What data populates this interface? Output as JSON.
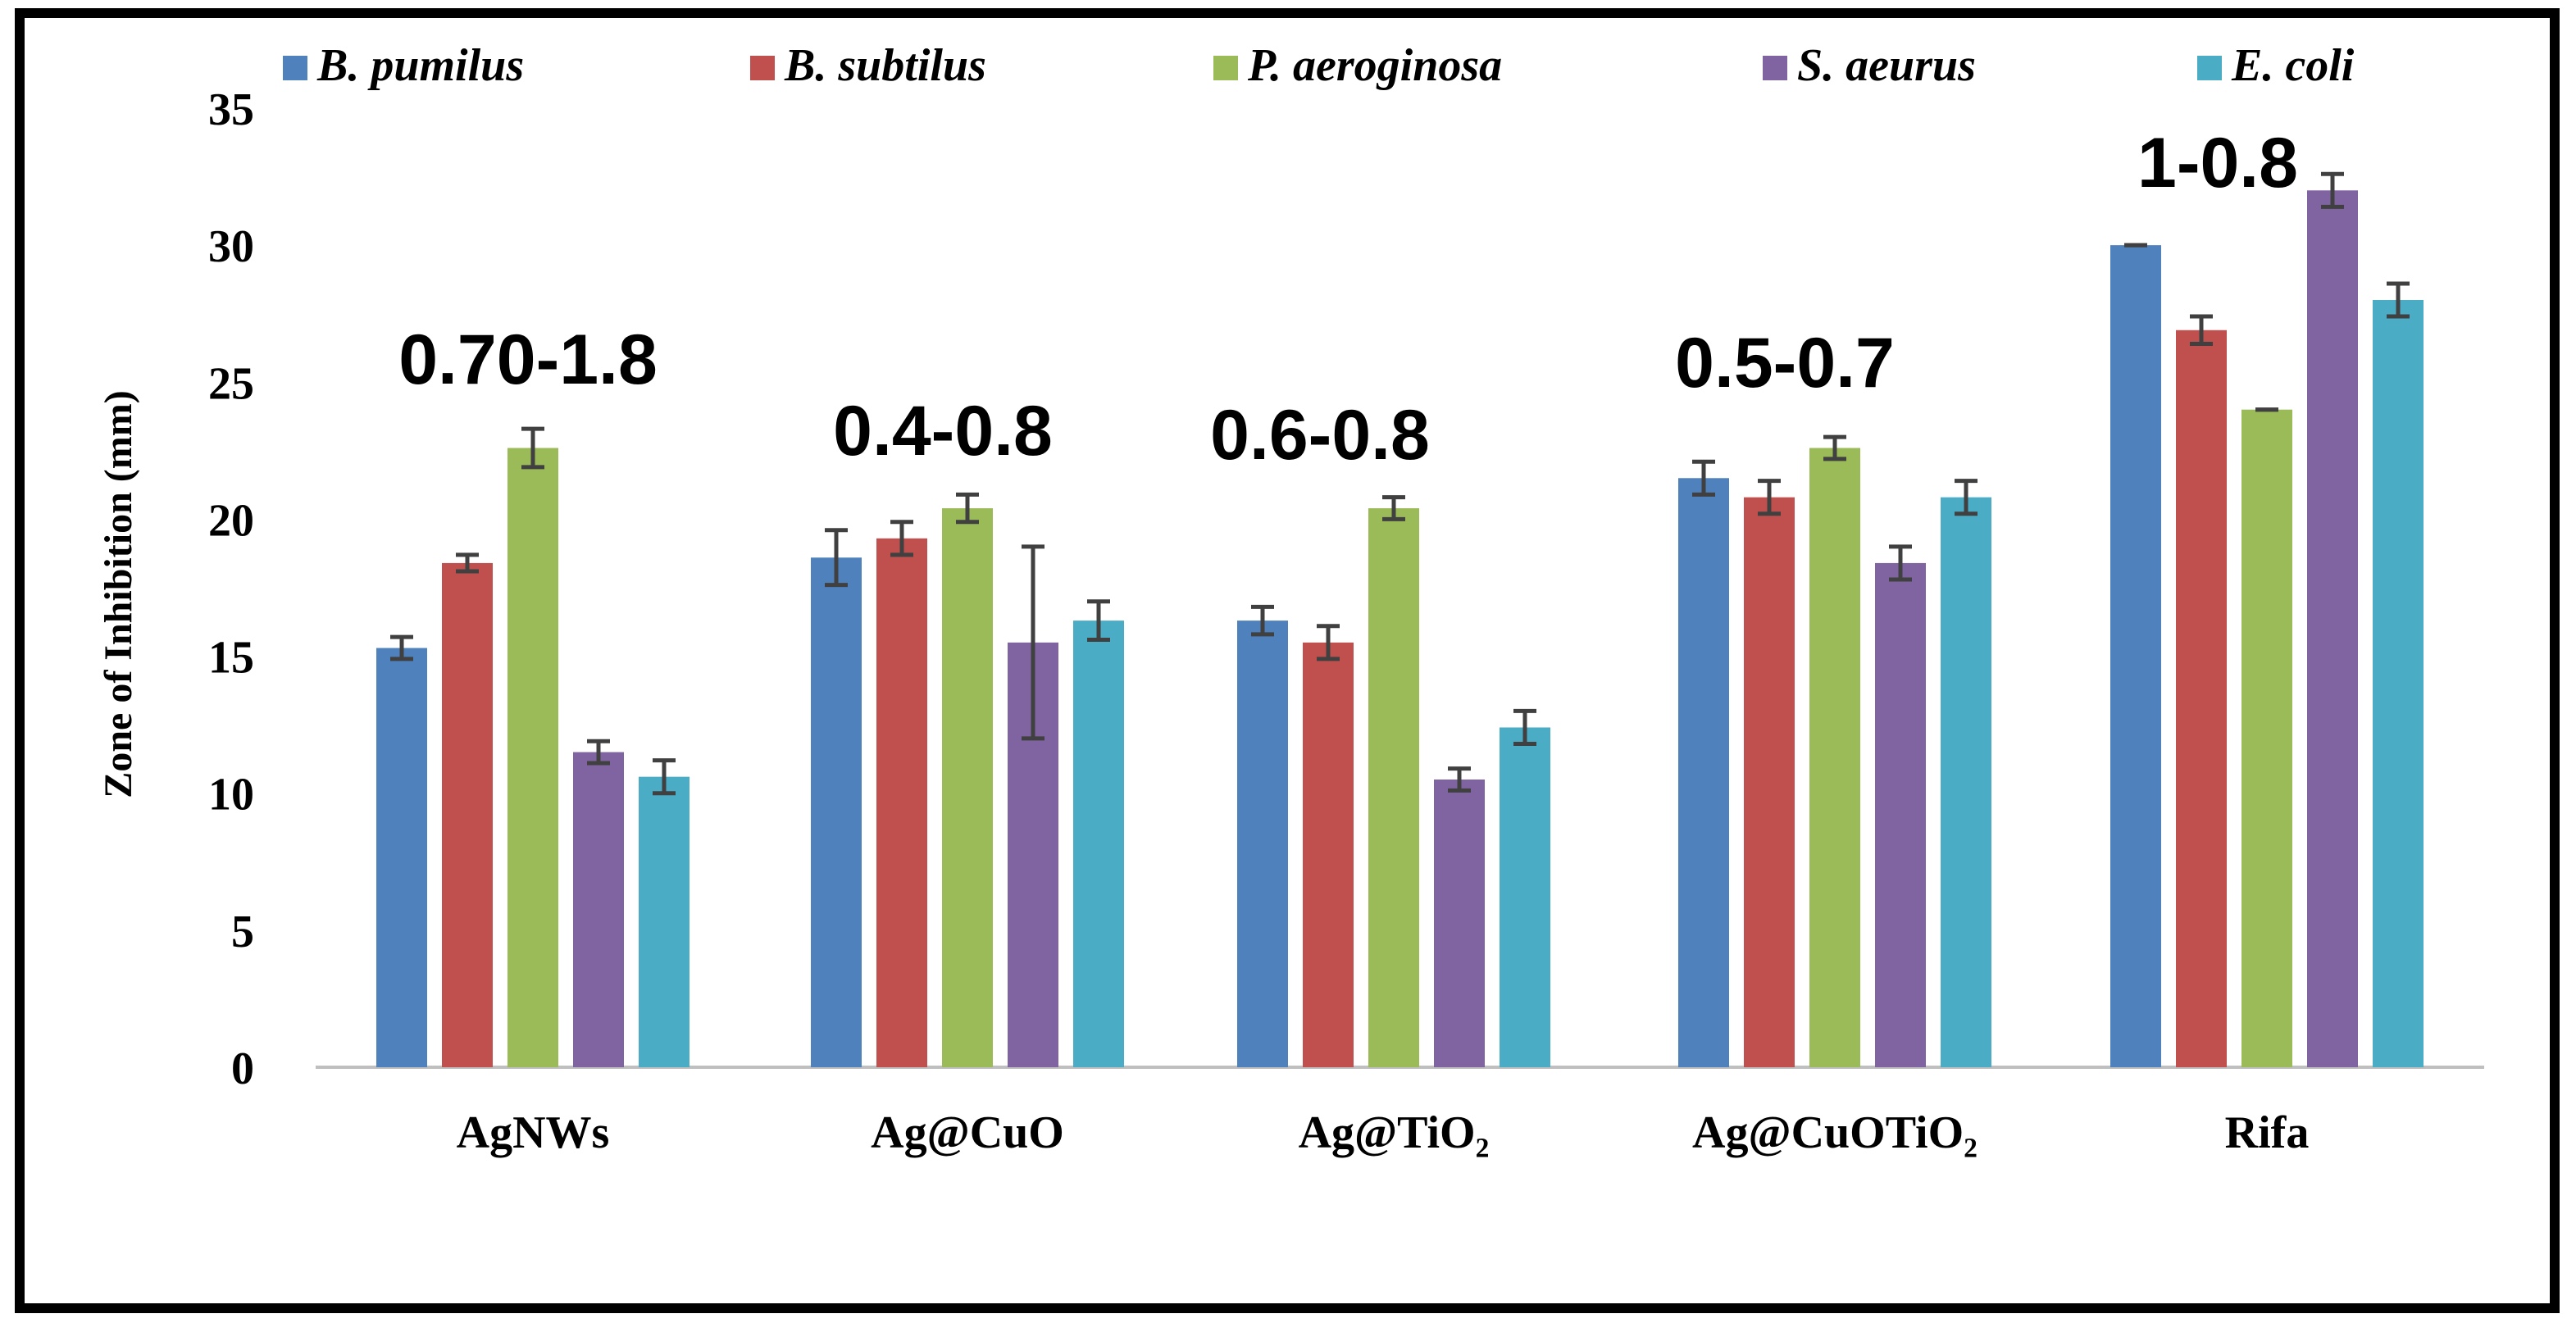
{
  "chart_data": {
    "type": "bar",
    "title": "",
    "xlabel": "",
    "ylabel": "Zone of Inhibition (mm)",
    "ylim": [
      0,
      35
    ],
    "yticks": [
      0,
      5,
      10,
      15,
      20,
      25,
      30,
      35
    ],
    "grid": false,
    "legend_position": "top",
    "categories": [
      "AgNWs",
      "Ag@CuO",
      "Ag@TiO₂",
      "Ag@CuOTiO₂",
      "Rifa"
    ],
    "series": [
      {
        "name": "B. pumilus",
        "color": "#4f81bd",
        "values": [
          15.3,
          18.6,
          16.3,
          21.5,
          30.0
        ],
        "errors": [
          0.4,
          1.0,
          0.5,
          0.6,
          0.0
        ]
      },
      {
        "name": "B. subtilus",
        "color": "#c0504d",
        "values": [
          18.4,
          19.3,
          15.5,
          20.8,
          26.9
        ],
        "errors": [
          0.3,
          0.6,
          0.6,
          0.6,
          0.5
        ]
      },
      {
        "name": "P. aeroginosa",
        "color": "#9bbb59",
        "values": [
          22.6,
          20.4,
          20.4,
          22.6,
          24.0
        ],
        "errors": [
          0.7,
          0.5,
          0.4,
          0.4,
          0.0
        ]
      },
      {
        "name": "S. aeurus",
        "color": "#8064a2",
        "values": [
          11.5,
          15.5,
          10.5,
          18.4,
          32.0
        ],
        "errors": [
          0.4,
          3.5,
          0.4,
          0.6,
          0.6
        ]
      },
      {
        "name": "E. coli",
        "color": "#4bacc6",
        "values": [
          10.6,
          16.3,
          12.4,
          20.8,
          28.0
        ],
        "errors": [
          0.6,
          0.7,
          0.6,
          0.6,
          0.6
        ]
      }
    ],
    "annotations": [
      "0.70-1.8",
      "0.4-0.8",
      "0.6-0.8",
      "0.5-0.7",
      "1-0.8"
    ]
  }
}
